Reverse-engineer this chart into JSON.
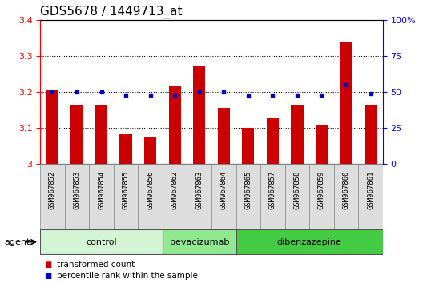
{
  "title": "GDS5678 / 1449713_at",
  "samples": [
    "GSM967852",
    "GSM967853",
    "GSM967854",
    "GSM967855",
    "GSM967856",
    "GSM967862",
    "GSM967863",
    "GSM967864",
    "GSM967865",
    "GSM967857",
    "GSM967858",
    "GSM967859",
    "GSM967860",
    "GSM967861"
  ],
  "transformed_count": [
    3.205,
    3.165,
    3.165,
    3.085,
    3.075,
    3.215,
    3.27,
    3.155,
    3.1,
    3.13,
    3.165,
    3.11,
    3.34,
    3.165
  ],
  "percentile_values": [
    50,
    50,
    50,
    48,
    48,
    48,
    50,
    50,
    47,
    48,
    48,
    48,
    55,
    49
  ],
  "groups": [
    {
      "label": "control",
      "start": 0,
      "end": 5,
      "color": "#d4f5d4"
    },
    {
      "label": "bevacizumab",
      "start": 5,
      "end": 8,
      "color": "#90e890"
    },
    {
      "label": "dibenzazepine",
      "start": 8,
      "end": 14,
      "color": "#44cc44"
    }
  ],
  "ylim": [
    3.0,
    3.4
  ],
  "yticks": [
    3.0,
    3.1,
    3.2,
    3.3,
    3.4
  ],
  "right_ylim": [
    0,
    100
  ],
  "right_yticks": [
    0,
    25,
    50,
    75,
    100
  ],
  "bar_color": "#cc0000",
  "dot_color": "#0000cc",
  "background_color": "#ffffff",
  "title_fontsize": 11,
  "tick_fontsize": 8,
  "sample_fontsize": 6.5,
  "group_fontsize": 8,
  "legend_fontsize": 7.5
}
